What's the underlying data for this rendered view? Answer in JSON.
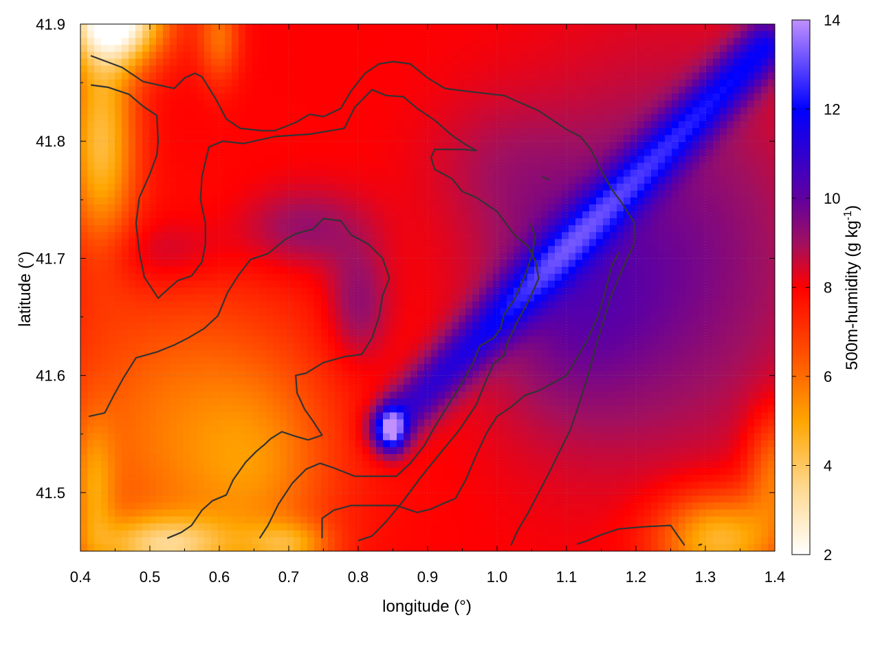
{
  "chart_data": {
    "type": "heatmap",
    "xlabel": "longitude (°)",
    "ylabel": "latitude (°)",
    "colorbar_label": "500m-humidity (g kg",
    "colorbar_label_sup": "-1",
    "colorbar_label_end": ")",
    "xlim": [
      0.4,
      1.4
    ],
    "ylim": [
      41.45,
      41.9
    ],
    "zlim": [
      2,
      14
    ],
    "x_ticks": [
      {
        "value": 0.4,
        "label": "0.4"
      },
      {
        "value": 0.5,
        "label": "0.5"
      },
      {
        "value": 0.6,
        "label": "0.6"
      },
      {
        "value": 0.7,
        "label": "0.7"
      },
      {
        "value": 0.8,
        "label": "0.8"
      },
      {
        "value": 0.9,
        "label": "0.9"
      },
      {
        "value": 1.0,
        "label": "1.0"
      },
      {
        "value": 1.1,
        "label": "1.1"
      },
      {
        "value": 1.2,
        "label": "1.2"
      },
      {
        "value": 1.3,
        "label": "1.3"
      },
      {
        "value": 1.4,
        "label": "1.4"
      }
    ],
    "y_ticks": [
      {
        "value": 41.5,
        "label": "41.5"
      },
      {
        "value": 41.6,
        "label": "41.6"
      },
      {
        "value": 41.7,
        "label": "41.7"
      },
      {
        "value": 41.8,
        "label": "41.8"
      },
      {
        "value": 41.9,
        "label": "41.9"
      }
    ],
    "colorbar_ticks": [
      {
        "value": 2,
        "label": "2"
      },
      {
        "value": 4,
        "label": "4"
      },
      {
        "value": 6,
        "label": "6"
      },
      {
        "value": 8,
        "label": "8"
      },
      {
        "value": 10,
        "label": "10"
      },
      {
        "value": 12,
        "label": "12"
      },
      {
        "value": 14,
        "label": "14"
      }
    ],
    "colormap": [
      {
        "value": 2,
        "color": "#ffffff"
      },
      {
        "value": 3.5,
        "color": "#ffd890"
      },
      {
        "value": 5,
        "color": "#ffa500"
      },
      {
        "value": 6.5,
        "color": "#ff5000"
      },
      {
        "value": 8,
        "color": "#ff0000"
      },
      {
        "value": 9,
        "color": "#a01060"
      },
      {
        "value": 10,
        "color": "#6000a0"
      },
      {
        "value": 12,
        "color": "#0000ff"
      },
      {
        "value": 14,
        "color": "#c090ff"
      }
    ],
    "grid": true,
    "contour_color": "#333333",
    "contours": [
      [
        [
          0.415,
          41.873
        ],
        [
          0.46,
          41.863
        ],
        [
          0.49,
          41.851
        ],
        [
          0.535,
          41.845
        ],
        [
          0.55,
          41.854
        ],
        [
          0.565,
          41.858
        ],
        [
          0.575,
          41.855
        ],
        [
          0.595,
          41.836
        ],
        [
          0.61,
          41.819
        ],
        [
          0.63,
          41.811
        ],
        [
          0.66,
          41.809
        ],
        [
          0.68,
          41.809
        ],
        [
          0.71,
          41.816
        ],
        [
          0.73,
          41.823
        ],
        [
          0.75,
          41.821
        ],
        [
          0.775,
          41.828
        ],
        [
          0.79,
          41.843
        ],
        [
          0.81,
          41.858
        ],
        [
          0.83,
          41.866
        ],
        [
          0.85,
          41.868
        ],
        [
          0.875,
          41.866
        ],
        [
          0.9,
          41.854
        ],
        [
          0.925,
          41.845
        ],
        [
          0.965,
          41.842
        ],
        [
          1.01,
          41.839
        ],
        [
          1.06,
          41.826
        ],
        [
          1.1,
          41.81
        ],
        [
          1.12,
          41.804
        ],
        [
          1.135,
          41.793
        ],
        [
          1.15,
          41.775
        ],
        [
          1.165,
          41.759
        ],
        [
          1.18,
          41.747
        ],
        [
          1.197,
          41.731
        ],
        [
          1.197,
          41.712
        ],
        [
          1.18,
          41.69
        ],
        [
          1.163,
          41.666
        ],
        [
          1.15,
          41.64
        ],
        [
          1.14,
          41.62
        ],
        [
          1.13,
          41.598
        ],
        [
          1.115,
          41.57
        ],
        [
          1.105,
          41.553
        ],
        [
          1.09,
          41.535
        ],
        [
          1.075,
          41.517
        ],
        [
          1.06,
          41.5
        ],
        [
          1.045,
          41.483
        ],
        [
          1.03,
          41.468
        ],
        [
          1.02,
          41.455
        ]
      ],
      [
        [
          0.415,
          41.848
        ],
        [
          0.44,
          41.846
        ],
        [
          0.47,
          41.84
        ],
        [
          0.49,
          41.83
        ],
        [
          0.51,
          41.822
        ],
        [
          0.512,
          41.8
        ],
        [
          0.51,
          41.788
        ],
        [
          0.5,
          41.772
        ],
        [
          0.485,
          41.752
        ],
        [
          0.48,
          41.73
        ],
        [
          0.485,
          41.705
        ],
        [
          0.492,
          41.684
        ],
        [
          0.512,
          41.666
        ],
        [
          0.523,
          41.672
        ],
        [
          0.54,
          41.681
        ],
        [
          0.56,
          41.685
        ],
        [
          0.575,
          41.697
        ],
        [
          0.58,
          41.712
        ],
        [
          0.58,
          41.73
        ],
        [
          0.573,
          41.75
        ],
        [
          0.575,
          41.77
        ],
        [
          0.585,
          41.795
        ],
        [
          0.605,
          41.8
        ],
        [
          0.635,
          41.798
        ],
        [
          0.68,
          41.804
        ],
        [
          0.73,
          41.806
        ],
        [
          0.77,
          41.81
        ],
        [
          0.78,
          41.811
        ],
        [
          0.795,
          41.829
        ],
        [
          0.82,
          41.844
        ],
        [
          0.84,
          41.839
        ],
        [
          0.865,
          41.838
        ],
        [
          0.885,
          41.828
        ],
        [
          0.91,
          41.818
        ],
        [
          0.935,
          41.805
        ],
        [
          0.955,
          41.797
        ],
        [
          0.97,
          41.792
        ],
        [
          0.95,
          41.793
        ],
        [
          0.93,
          41.793
        ],
        [
          0.91,
          41.793
        ],
        [
          0.905,
          41.786
        ],
        [
          0.91,
          41.776
        ],
        [
          0.935,
          41.768
        ],
        [
          0.95,
          41.757
        ],
        [
          0.97,
          41.752
        ],
        [
          1.0,
          41.74
        ],
        [
          1.025,
          41.72
        ],
        [
          1.045,
          41.71
        ],
        [
          1.055,
          41.698
        ],
        [
          1.06,
          41.683
        ],
        [
          1.045,
          41.663
        ],
        [
          1.03,
          41.647
        ],
        [
          1.015,
          41.628
        ],
        [
          1.01,
          41.617
        ],
        [
          0.995,
          41.61
        ],
        [
          0.985,
          41.597
        ],
        [
          0.97,
          41.575
        ],
        [
          0.945,
          41.553
        ],
        [
          0.92,
          41.535
        ],
        [
          0.89,
          41.513
        ],
        [
          0.865,
          41.493
        ],
        [
          0.84,
          41.475
        ],
        [
          0.82,
          41.463
        ],
        [
          0.8,
          41.459
        ]
      ],
      [
        [
          0.412,
          41.565
        ],
        [
          0.435,
          41.568
        ],
        [
          0.448,
          41.583
        ],
        [
          0.462,
          41.598
        ],
        [
          0.48,
          41.615
        ],
        [
          0.51,
          41.62
        ],
        [
          0.535,
          41.626
        ],
        [
          0.555,
          41.632
        ],
        [
          0.578,
          41.64
        ],
        [
          0.598,
          41.651
        ],
        [
          0.612,
          41.671
        ],
        [
          0.628,
          41.686
        ],
        [
          0.645,
          41.699
        ],
        [
          0.67,
          41.704
        ],
        [
          0.695,
          41.716
        ],
        [
          0.71,
          41.721
        ],
        [
          0.735,
          41.725
        ],
        [
          0.75,
          41.734
        ],
        [
          0.775,
          41.732
        ],
        [
          0.79,
          41.72
        ],
        [
          0.815,
          41.712
        ],
        [
          0.835,
          41.7
        ],
        [
          0.845,
          41.683
        ],
        [
          0.835,
          41.668
        ],
        [
          0.83,
          41.65
        ],
        [
          0.82,
          41.632
        ],
        [
          0.805,
          41.618
        ],
        [
          0.78,
          41.616
        ],
        [
          0.75,
          41.611
        ],
        [
          0.725,
          41.602
        ],
        [
          0.71,
          41.6
        ],
        [
          0.712,
          41.585
        ],
        [
          0.723,
          41.571
        ],
        [
          0.735,
          41.561
        ],
        [
          0.748,
          41.549
        ],
        [
          0.728,
          41.545
        ],
        [
          0.71,
          41.548
        ],
        [
          0.69,
          41.552
        ],
        [
          0.674,
          41.546
        ],
        [
          0.665,
          41.541
        ],
        [
          0.653,
          41.535
        ],
        [
          0.638,
          41.526
        ],
        [
          0.62,
          41.511
        ],
        [
          0.61,
          41.498
        ],
        [
          0.59,
          41.493
        ],
        [
          0.575,
          41.485
        ],
        [
          0.56,
          41.472
        ],
        [
          0.545,
          41.466
        ],
        [
          0.525,
          41.461
        ]
      ],
      [
        [
          0.658,
          41.461
        ],
        [
          0.67,
          41.472
        ],
        [
          0.685,
          41.49
        ],
        [
          0.705,
          41.508
        ],
        [
          0.725,
          41.52
        ],
        [
          0.745,
          41.525
        ],
        [
          0.765,
          41.521
        ],
        [
          0.795,
          41.514
        ],
        [
          0.83,
          41.514
        ],
        [
          0.855,
          41.514
        ],
        [
          0.875,
          41.525
        ],
        [
          0.895,
          41.54
        ],
        [
          0.91,
          41.556
        ],
        [
          0.93,
          41.575
        ],
        [
          0.948,
          41.592
        ],
        [
          0.965,
          41.61
        ],
        [
          0.975,
          41.625
        ],
        [
          0.995,
          41.632
        ],
        [
          1.005,
          41.64
        ],
        [
          1.01,
          41.652
        ],
        [
          1.025,
          41.665
        ],
        [
          1.04,
          41.685
        ],
        [
          1.05,
          41.702
        ],
        [
          1.055,
          41.718
        ],
        [
          1.048,
          41.73
        ]
      ],
      [
        [
          0.748,
          41.461
        ],
        [
          0.748,
          41.478
        ],
        [
          0.765,
          41.485
        ],
        [
          0.79,
          41.489
        ],
        [
          0.835,
          41.489
        ],
        [
          0.855,
          41.489
        ],
        [
          0.885,
          41.483
        ],
        [
          0.905,
          41.486
        ],
        [
          0.92,
          41.49
        ],
        [
          0.94,
          41.495
        ],
        [
          0.955,
          41.511
        ],
        [
          0.97,
          41.532
        ],
        [
          0.985,
          41.551
        ],
        [
          1.0,
          41.565
        ],
        [
          1.02,
          41.573
        ],
        [
          1.04,
          41.583
        ],
        [
          1.06,
          41.587
        ],
        [
          1.085,
          41.595
        ],
        [
          1.1,
          41.6
        ],
        [
          1.115,
          41.615
        ],
        [
          1.13,
          41.63
        ],
        [
          1.145,
          41.65
        ],
        [
          1.155,
          41.67
        ],
        [
          1.165,
          41.693
        ],
        [
          1.175,
          41.705
        ]
      ],
      [
        [
          1.115,
          41.456
        ],
        [
          1.13,
          41.459
        ],
        [
          1.15,
          41.464
        ],
        [
          1.175,
          41.469
        ],
        [
          1.215,
          41.471
        ],
        [
          1.25,
          41.472
        ],
        [
          1.27,
          41.455
        ]
      ],
      [
        [
          1.065,
          41.77
        ],
        [
          1.075,
          41.767
        ]
      ],
      [
        [
          1.29,
          41.455
        ],
        [
          1.295,
          41.456
        ]
      ]
    ]
  }
}
